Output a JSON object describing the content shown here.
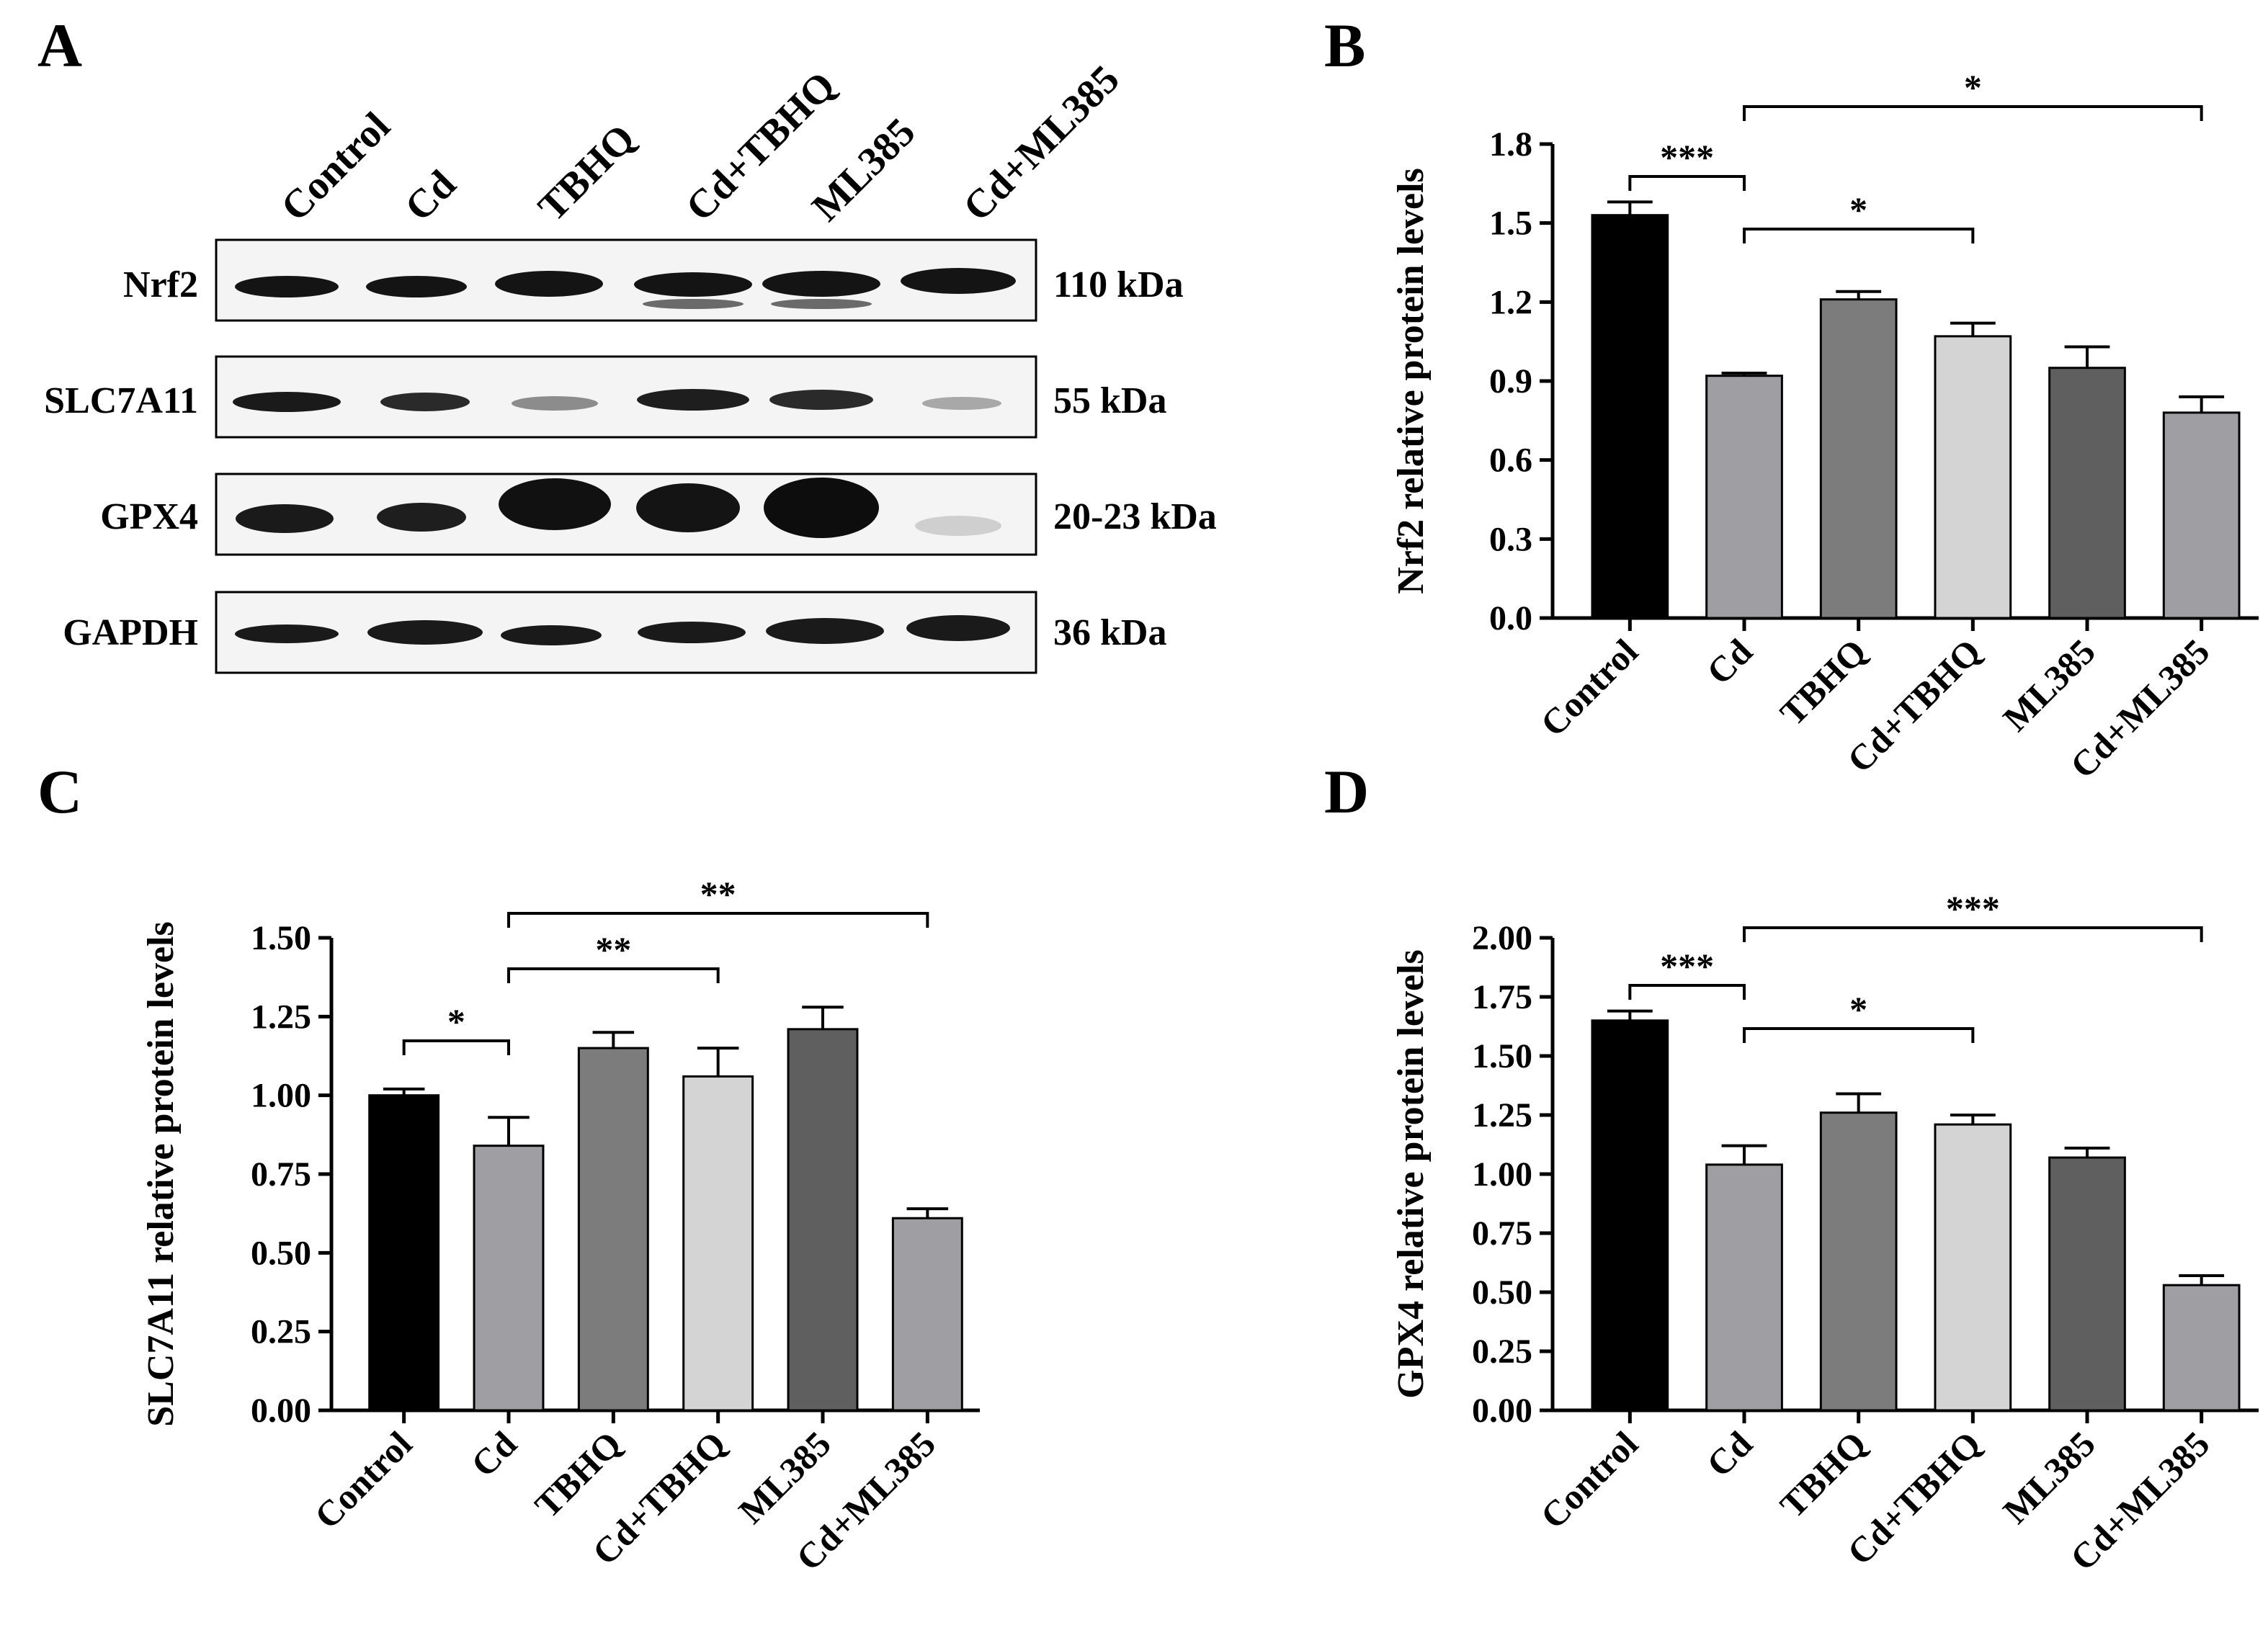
{
  "colors": {
    "Control": "#000000",
    "Cd": "#9e9ea3",
    "TBHQ": "#7c7c7c",
    "Cd+TBHQ": "#d4d4d4",
    "ML385": "#5f5f5f",
    "Cd+ML385": "#9e9ea3"
  },
  "blot": {
    "panel_letter": "A",
    "lanes": [
      "Control",
      "Cd",
      "TBHQ",
      "Cd+TBHQ",
      "ML385",
      "Cd+ML385"
    ],
    "rows": [
      {
        "name": "Nrf2",
        "size": "110 kDa"
      },
      {
        "name": "SLC7A11",
        "size": "55 kDa"
      },
      {
        "name": "GPX4",
        "size": "20-23 kDa"
      },
      {
        "name": "GAPDH",
        "size": "36 kDa"
      }
    ]
  },
  "chart_data": [
    {
      "panel": "B",
      "type": "bar",
      "categories": [
        "Control",
        "Cd",
        "TBHQ",
        "Cd+TBHQ",
        "ML385",
        "Cd+ML385"
      ],
      "values": [
        1.53,
        0.92,
        1.21,
        1.07,
        0.95,
        0.78
      ],
      "errors": [
        0.05,
        0.01,
        0.03,
        0.05,
        0.08,
        0.06
      ],
      "ylabel": "Nrf2 relative protein levels",
      "ylim": [
        0,
        1.8
      ],
      "yticks": [
        "0.0",
        "0.3",
        "0.6",
        "0.9",
        "1.2",
        "1.5",
        "1.8"
      ],
      "significance": [
        {
          "from": 0,
          "to": 1,
          "label": "***"
        },
        {
          "from": 1,
          "to": 3,
          "label": "*"
        },
        {
          "from": 1,
          "to": 5,
          "label": "*"
        }
      ]
    },
    {
      "panel": "C",
      "type": "bar",
      "categories": [
        "Control",
        "Cd",
        "TBHQ",
        "Cd+TBHQ",
        "ML385",
        "Cd+ML385"
      ],
      "values": [
        1.0,
        0.84,
        1.15,
        1.06,
        1.21,
        0.61
      ],
      "errors": [
        0.02,
        0.09,
        0.05,
        0.09,
        0.07,
        0.03
      ],
      "ylabel": "SLC7A11 relative protein levels",
      "ylim": [
        0,
        1.5
      ],
      "yticks": [
        "0.00",
        "0.25",
        "0.50",
        "0.75",
        "1.00",
        "1.25",
        "1.50"
      ],
      "significance": [
        {
          "from": 0,
          "to": 1,
          "label": "*"
        },
        {
          "from": 1,
          "to": 3,
          "label": "**"
        },
        {
          "from": 1,
          "to": 5,
          "label": "**"
        }
      ]
    },
    {
      "panel": "D",
      "type": "bar",
      "categories": [
        "Control",
        "Cd",
        "TBHQ",
        "Cd+TBHQ",
        "ML385",
        "Cd+ML385"
      ],
      "values": [
        1.65,
        1.04,
        1.26,
        1.21,
        1.07,
        0.53
      ],
      "errors": [
        0.04,
        0.08,
        0.08,
        0.04,
        0.04,
        0.04
      ],
      "ylabel": "GPX4 relative protein levels",
      "ylim": [
        0,
        2.0
      ],
      "yticks": [
        "0.00",
        "0.25",
        "0.50",
        "0.75",
        "1.00",
        "1.25",
        "1.50",
        "1.75",
        "2.00"
      ],
      "significance": [
        {
          "from": 0,
          "to": 1,
          "label": "***"
        },
        {
          "from": 1,
          "to": 3,
          "label": "*"
        },
        {
          "from": 1,
          "to": 5,
          "label": "***"
        }
      ]
    }
  ]
}
